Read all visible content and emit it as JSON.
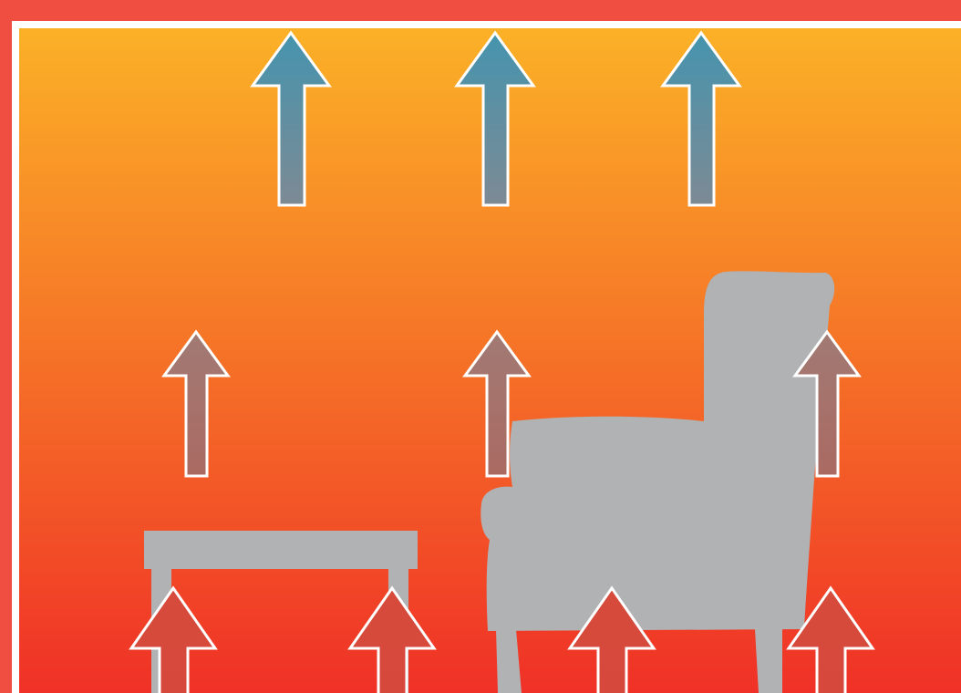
{
  "diagram": {
    "colors": {
      "outer_frame": "#F04E40",
      "inner_border": "#FFFFFF",
      "gradient_top": "#FBB127",
      "gradient_bottom": "#EF2B27",
      "furniture": "#B1B2B4",
      "arrow_outline": "#FFFFFF",
      "arrow_cool_top": "#4594AE",
      "arrow_cool_bottom": "#7D8A94",
      "arrow_mid_top": "#A17A74",
      "arrow_mid_bottom": "#AA6A62",
      "arrow_warm_top": "#D64B3B",
      "arrow_warm_bottom": "#D6483C"
    },
    "arrow_rows": [
      {
        "row": "top",
        "count": 3,
        "icon": "cool-air-up-arrow"
      },
      {
        "row": "middle",
        "count": 3,
        "icon": "rising-air-up-arrow"
      },
      {
        "row": "bottom",
        "count": 4,
        "icon": "warm-air-up-arrow"
      }
    ],
    "furniture": [
      {
        "icon": "coffee-table-icon"
      },
      {
        "icon": "armchair-icon"
      }
    ]
  }
}
